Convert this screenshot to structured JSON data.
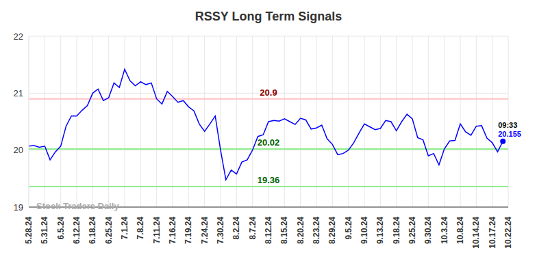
{
  "chart_data": {
    "type": "line",
    "title": "RSSY Long Term Signals",
    "watermark": "Stock Traders Daily",
    "categories": [
      "5.28.24",
      null,
      null,
      "5.31.24",
      null,
      null,
      "6.5.24",
      null,
      null,
      "6.12.24",
      null,
      null,
      "6.18.24",
      null,
      null,
      "6.25.24",
      null,
      null,
      "7.1.24",
      null,
      null,
      "7.8.24",
      null,
      null,
      "7.11.24",
      null,
      null,
      "7.16.24",
      null,
      null,
      "7.19.24",
      null,
      null,
      "7.24.24",
      null,
      null,
      "7.30.24",
      null,
      null,
      "8.2.24",
      null,
      null,
      "8.7.24",
      null,
      null,
      "8.12.24",
      null,
      null,
      "8.15.24",
      null,
      null,
      "8.20.24",
      null,
      null,
      "8.23.24",
      null,
      null,
      "8.29.24",
      null,
      null,
      "9.5.24",
      null,
      null,
      "9.10.24",
      null,
      null,
      "9.13.24",
      null,
      null,
      "9.18.24",
      null,
      null,
      "9.25.24",
      null,
      null,
      "9.30.24",
      null,
      null,
      "10.3.24",
      null,
      null,
      "10.8.24",
      null,
      null,
      "10.14.24",
      null,
      null,
      "10.17.24",
      null,
      null,
      "10.22.24"
    ],
    "values": [
      20.07,
      20.08,
      20.05,
      20.07,
      19.83,
      19.97,
      20.07,
      20.42,
      20.6,
      20.6,
      20.7,
      20.78,
      21.0,
      21.07,
      20.87,
      20.92,
      21.18,
      21.1,
      21.42,
      21.22,
      21.13,
      21.2,
      21.15,
      21.18,
      20.9,
      20.81,
      21.03,
      20.94,
      20.84,
      20.87,
      20.76,
      20.69,
      20.46,
      20.33,
      20.46,
      20.6,
      20.0,
      19.48,
      19.65,
      19.58,
      19.79,
      19.83,
      20.0,
      20.24,
      20.27,
      20.5,
      20.52,
      20.51,
      20.55,
      20.5,
      20.45,
      20.56,
      20.53,
      20.37,
      20.39,
      20.44,
      20.2,
      20.1,
      19.92,
      19.94,
      20.0,
      20.13,
      20.3,
      20.46,
      20.41,
      20.36,
      20.38,
      20.52,
      20.5,
      20.34,
      20.5,
      20.63,
      20.55,
      20.22,
      20.18,
      19.9,
      19.94,
      19.74,
      20.02,
      20.16,
      20.17,
      20.46,
      20.32,
      20.26,
      20.42,
      20.43,
      20.21,
      20.13,
      19.97,
      20.155,
      null
    ],
    "color": "#0000ff",
    "ylim": [
      19,
      22
    ],
    "yticks": [
      19,
      20,
      21,
      22
    ],
    "grid": true,
    "annotations": [
      {
        "y": 20.9,
        "label": "20.9",
        "color": "#8b0000",
        "line_color": "#ffc0c0"
      },
      {
        "y": 20.02,
        "label": "20.02",
        "color": "#006400",
        "line_color": "#90ee90"
      },
      {
        "y": 19.36,
        "label": "19.36",
        "color": "#006400",
        "line_color": "#90ee90"
      }
    ],
    "end_annotation": {
      "time": "09:33",
      "value_label": "20.155"
    }
  }
}
